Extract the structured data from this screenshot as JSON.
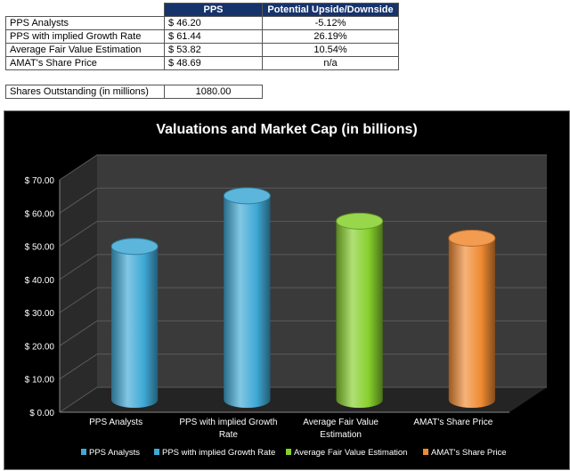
{
  "table": {
    "headers": [
      "",
      "PPS",
      "Potential Upside/Downside"
    ],
    "rows": [
      {
        "label": "PPS Analysts",
        "currency": "$",
        "pps": "46.20",
        "upside": "-5.12%"
      },
      {
        "label": "PPS with implied Growth Rate",
        "currency": "$",
        "pps": "61.44",
        "upside": "26.19%"
      },
      {
        "label": "Average Fair Value Estimation",
        "currency": "$",
        "pps": "53.82",
        "upside": "10.54%"
      },
      {
        "label": "AMAT's Share Price",
        "currency": "$",
        "pps": "48.69",
        "upside": "n/a"
      }
    ]
  },
  "shares": {
    "label": "Shares Outstanding (in millions)",
    "value": "1080.00"
  },
  "chart_data": {
    "type": "bar",
    "style": "3d-cylinder",
    "title": "Valuations and Market Cap (in billions)",
    "categories": [
      "PPS Analysts",
      "PPS with implied Growth Rate",
      "Average Fair Value Estimation",
      "AMAT's Share Price"
    ],
    "category_labels": [
      [
        "PPS Analysts"
      ],
      [
        "PPS with implied Growth",
        "Rate"
      ],
      [
        "Average Fair Value",
        "Estimation"
      ],
      [
        "AMAT's Share Price"
      ]
    ],
    "values": [
      46.2,
      61.44,
      53.82,
      48.69
    ],
    "colors": [
      "#3fa9d6",
      "#3fa9d6",
      "#86d02c",
      "#f08a32"
    ],
    "ylim": [
      0,
      70
    ],
    "yticks": [
      0,
      10,
      20,
      30,
      40,
      50,
      60,
      70
    ],
    "ytick_labels": [
      "$ 0.00",
      "$ 10.00",
      "$ 20.00",
      "$ 30.00",
      "$ 40.00",
      "$ 50.00",
      "$ 60.00",
      "$ 70.00"
    ],
    "legend": [
      "PPS Analysts",
      "PPS with implied Growth Rate",
      "Average Fair Value Estimation",
      "AMAT's Share Price"
    ],
    "legend_position": "bottom",
    "grid": true,
    "background": "#000000",
    "wall_color": "#3a3a3a"
  }
}
